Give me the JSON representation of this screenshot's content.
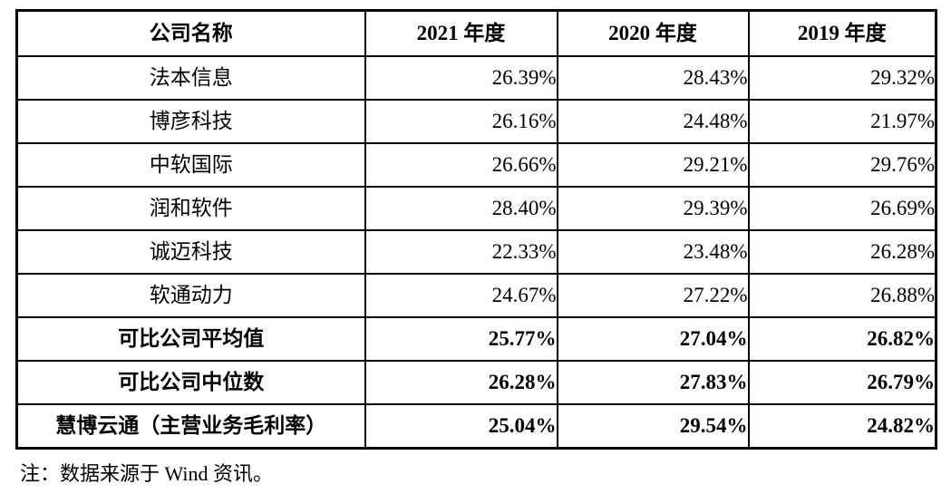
{
  "table": {
    "columns": [
      "公司名称",
      "2021 年度",
      "2020 年度",
      "2019 年度"
    ],
    "rows": [
      {
        "label": "法本信息",
        "values": [
          "26.39%",
          "28.43%",
          "29.32%"
        ],
        "bold": false
      },
      {
        "label": "博彦科技",
        "values": [
          "26.16%",
          "24.48%",
          "21.97%"
        ],
        "bold": false
      },
      {
        "label": "中软国际",
        "values": [
          "26.66%",
          "29.21%",
          "29.76%"
        ],
        "bold": false
      },
      {
        "label": "润和软件",
        "values": [
          "28.40%",
          "29.39%",
          "26.69%"
        ],
        "bold": false
      },
      {
        "label": "诚迈科技",
        "values": [
          "22.33%",
          "23.48%",
          "26.28%"
        ],
        "bold": false
      },
      {
        "label": "软通动力",
        "values": [
          "24.67%",
          "27.22%",
          "26.88%"
        ],
        "bold": false
      },
      {
        "label": "可比公司平均值",
        "values": [
          "25.77%",
          "27.04%",
          "26.82%"
        ],
        "bold": true
      },
      {
        "label": "可比公司中位数",
        "values": [
          "26.28%",
          "27.83%",
          "26.79%"
        ],
        "bold": true
      },
      {
        "label": "慧博云通（主营业务毛利率）",
        "values": [
          "25.04%",
          "29.54%",
          "24.82%"
        ],
        "bold": true
      }
    ]
  },
  "note": "注：数据来源于 Wind 资讯。"
}
